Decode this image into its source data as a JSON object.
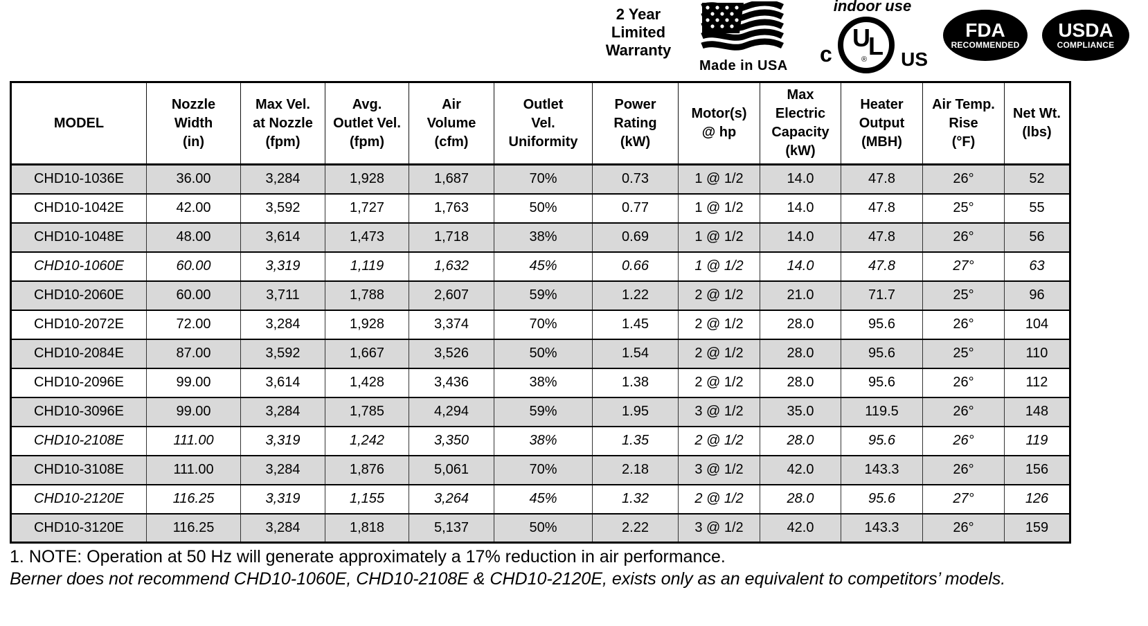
{
  "badges": {
    "warranty_lines": [
      "2 Year",
      "Limited",
      "Warranty"
    ],
    "made_in_usa": "Made in USA",
    "indoor_use": "indoor use",
    "ul_mark": {
      "c": "c",
      "u": "U",
      "l": "L",
      "registered": "®",
      "us": "US"
    },
    "fda": {
      "title": "FDA",
      "subtitle": "RECOMMENDED"
    },
    "usda": {
      "title": "USDA",
      "subtitle": "COMPLIANCE"
    }
  },
  "table": {
    "columns": [
      "MODEL",
      "Nozzle\nWidth\n(in)",
      "Max Vel.\nat Nozzle\n(fpm)",
      "Avg.\nOutlet Vel.\n(fpm)",
      "Air\nVolume\n(cfm)",
      "Outlet\nVel.\nUniformity",
      "Power\nRating\n(kW)",
      "Motor(s)\n@ hp",
      "Max\nElectric\nCapacity\n(kW)",
      "Heater\nOutput\n(MBH)",
      "Air Temp.\nRise\n(°F)",
      "Net Wt.\n(lbs)"
    ],
    "rows": [
      {
        "model": "CHD10-1036E",
        "italic": false,
        "values": [
          "36.00",
          "3,284",
          "1,928",
          "1,687",
          "70%",
          "0.73",
          "1 @ 1/2",
          "14.0",
          "47.8",
          "26°",
          "52"
        ]
      },
      {
        "model": "CHD10-1042E",
        "italic": false,
        "values": [
          "42.00",
          "3,592",
          "1,727",
          "1,763",
          "50%",
          "0.77",
          "1 @ 1/2",
          "14.0",
          "47.8",
          "25°",
          "55"
        ]
      },
      {
        "model": "CHD10-1048E",
        "italic": false,
        "values": [
          "48.00",
          "3,614",
          "1,473",
          "1,718",
          "38%",
          "0.69",
          "1 @ 1/2",
          "14.0",
          "47.8",
          "26°",
          "56"
        ]
      },
      {
        "model": "CHD10-1060E",
        "italic": true,
        "values": [
          "60.00",
          "3,319",
          "1,119",
          "1,632",
          "45%",
          "0.66",
          "1 @ 1/2",
          "14.0",
          "47.8",
          "27°",
          "63"
        ]
      },
      {
        "model": "CHD10-2060E",
        "italic": false,
        "values": [
          "60.00",
          "3,711",
          "1,788",
          "2,607",
          "59%",
          "1.22",
          "2 @ 1/2",
          "21.0",
          "71.7",
          "25°",
          "96"
        ]
      },
      {
        "model": "CHD10-2072E",
        "italic": false,
        "values": [
          "72.00",
          "3,284",
          "1,928",
          "3,374",
          "70%",
          "1.45",
          "2 @ 1/2",
          "28.0",
          "95.6",
          "26°",
          "104"
        ]
      },
      {
        "model": "CHD10-2084E",
        "italic": false,
        "values": [
          "87.00",
          "3,592",
          "1,667",
          "3,526",
          "50%",
          "1.54",
          "2 @ 1/2",
          "28.0",
          "95.6",
          "25°",
          "110"
        ]
      },
      {
        "model": "CHD10-2096E",
        "italic": false,
        "values": [
          "99.00",
          "3,614",
          "1,428",
          "3,436",
          "38%",
          "1.38",
          "2 @ 1/2",
          "28.0",
          "95.6",
          "26°",
          "112"
        ]
      },
      {
        "model": "CHD10-3096E",
        "italic": false,
        "values": [
          "99.00",
          "3,284",
          "1,785",
          "4,294",
          "59%",
          "1.95",
          "3 @ 1/2",
          "35.0",
          "119.5",
          "26°",
          "148"
        ]
      },
      {
        "model": "CHD10-2108E",
        "italic": true,
        "values": [
          "111.00",
          "3,319",
          "1,242",
          "3,350",
          "38%",
          "1.35",
          "2 @ 1/2",
          "28.0",
          "95.6",
          "26°",
          "119"
        ]
      },
      {
        "model": "CHD10-3108E",
        "italic": false,
        "values": [
          "111.00",
          "3,284",
          "1,876",
          "5,061",
          "70%",
          "2.18",
          "3 @ 1/2",
          "42.0",
          "143.3",
          "26°",
          "156"
        ]
      },
      {
        "model": "CHD10-2120E",
        "italic": true,
        "values": [
          "116.25",
          "3,319",
          "1,155",
          "3,264",
          "45%",
          "1.32",
          "2 @ 1/2",
          "28.0",
          "95.6",
          "27°",
          "126"
        ]
      },
      {
        "model": "CHD10-3120E",
        "italic": false,
        "values": [
          "116.25",
          "3,284",
          "1,818",
          "5,137",
          "50%",
          "2.22",
          "3 @ 1/2",
          "42.0",
          "143.3",
          "26°",
          "159"
        ]
      }
    ]
  },
  "notes": {
    "note1": "1. NOTE: Operation at 50 Hz will generate approximately a 17% reduction in air performance.",
    "note2": "Berner does not recommend CHD10-1060E, CHD10-2108E & CHD10-2120E, exists only as an equivalent to competitors’ models."
  },
  "colors": {
    "row_shaded": "#d9d9d9",
    "border": "#000000",
    "badge_fill": "#000000"
  }
}
